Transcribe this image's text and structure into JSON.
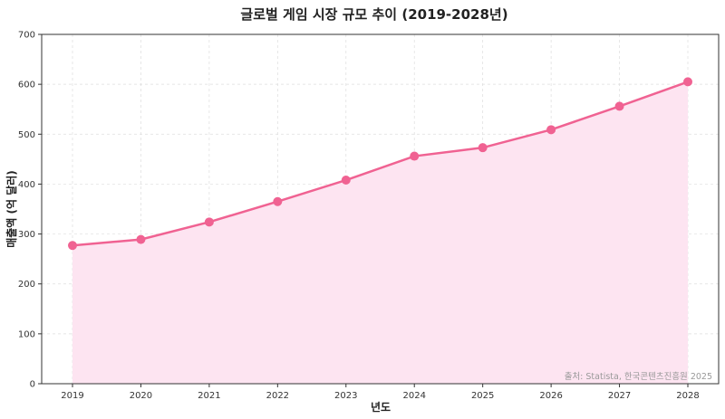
{
  "chart_data": {
    "type": "line",
    "title": "글로벌 게임 시장 규모 추이 (2019-2028년)",
    "xlabel": "년도",
    "ylabel": "매출액 (억 달러)",
    "categories": [
      "2019",
      "2020",
      "2021",
      "2022",
      "2023",
      "2024",
      "2025",
      "2026",
      "2027",
      "2028"
    ],
    "series": [
      {
        "name": "매출액",
        "values": [
          277,
          289,
          324,
          365,
          408,
          456,
          473,
          509,
          556,
          605
        ]
      }
    ],
    "ylim": [
      0,
      700
    ],
    "yticks": [
      "0",
      "100",
      "200",
      "300",
      "400",
      "500",
      "600",
      "700"
    ],
    "grid": true,
    "fill_under": true,
    "source_note": "출처: Statista, 한국콘텐츠진흥원 2025",
    "colors": {
      "line": "#f06292",
      "fill": "#fde4f1",
      "grid": "#dddddd"
    }
  }
}
